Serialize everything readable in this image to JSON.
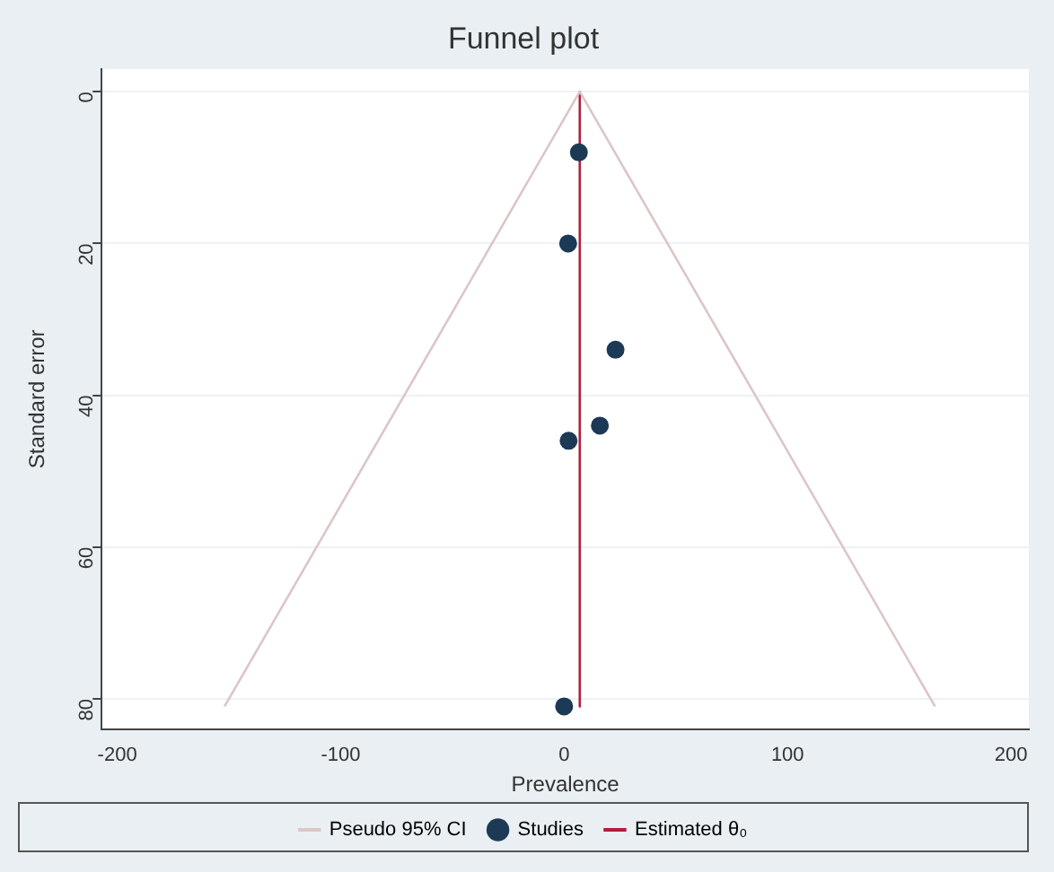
{
  "chart_data": {
    "type": "scatter",
    "title": "Funnel plot",
    "xlabel": "Prevalence",
    "ylabel": "Standard error",
    "xlim": [
      -207,
      208
    ],
    "xticks": [
      -200,
      -100,
      0,
      100,
      200
    ],
    "ylim": [
      84,
      -3
    ],
    "yticks": [
      0,
      20,
      40,
      60,
      80
    ],
    "grid": "y",
    "legend": "bottom",
    "marker": "circle",
    "series": [
      {
        "name": "Pseudo 95% CI",
        "type": "line",
        "marker": "none",
        "color": "#dcc6c6",
        "x": [
          -152,
          7,
          166
        ],
        "values": [
          81,
          0,
          81
        ]
      },
      {
        "name": "Studies",
        "color": "#1c3a55",
        "x": [
          6.6,
          1.8,
          23,
          16,
          2,
          0
        ],
        "values": [
          8,
          20,
          34,
          44,
          46,
          81
        ]
      },
      {
        "name": "Estimated θ₀",
        "type": "line",
        "marker": "none",
        "color": "#b01e3c",
        "x": [
          7,
          7
        ],
        "values": [
          0,
          81
        ]
      }
    ]
  }
}
